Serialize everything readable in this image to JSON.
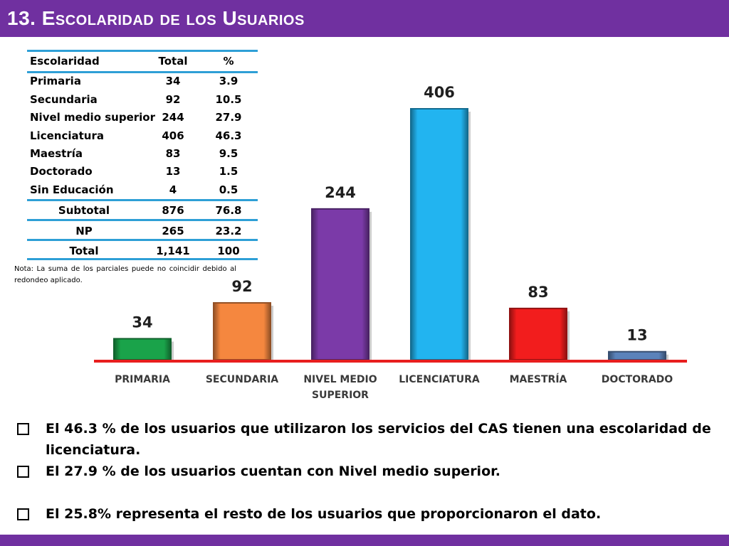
{
  "header": {
    "title": "13. Escolaridad de los Usuarios"
  },
  "table": {
    "headers": [
      "Escolaridad",
      "Total",
      "%"
    ],
    "rows": [
      [
        "Primaria",
        "34",
        "3.9"
      ],
      [
        "Secundaria",
        "92",
        "10.5"
      ],
      [
        "Nivel medio superior",
        "244",
        "27.9"
      ],
      [
        "Licenciatura",
        "406",
        "46.3"
      ],
      [
        "Maestría",
        "83",
        "9.5"
      ],
      [
        "Doctorado",
        "13",
        "1.5"
      ],
      [
        "Sin Educación",
        "4",
        "0.5"
      ]
    ],
    "summary": [
      [
        "Subtotal",
        "876",
        "76.8"
      ],
      [
        "NP",
        "265",
        "23.2"
      ],
      [
        "Total",
        "1,141",
        "100"
      ]
    ],
    "note": "Nota: La suma de los parciales puede no coincidir debido al redondeo aplicado."
  },
  "chart_data": {
    "type": "bar",
    "categories": [
      "PRIMARIA",
      "SECUNDARIA",
      "NIVEL MEDIO SUPERIOR",
      "LICENCIATURA",
      "MAESTRÍA",
      "DOCTORADO"
    ],
    "values": [
      34,
      92,
      244,
      406,
      83,
      13
    ],
    "colors": [
      "#1aa34a",
      "#f5873f",
      "#7b3aa8",
      "#22b4f0",
      "#f21d1d",
      "#5b82ba"
    ],
    "baseline_color": "#e81e1e",
    "title": "",
    "xlabel": "",
    "ylabel": "",
    "ylim": [
      0,
      406
    ],
    "data_labels": true
  },
  "bullets": [
    "El 46.3 % de los usuarios que utilizaron los servicios del CAS tienen una escolaridad de licenciatura.",
    "El 27.9 % de los usuarios cuentan con Nivel medio superior.",
    "El  25.8% representa el resto de los usuarios que proporcionaron el dato."
  ]
}
